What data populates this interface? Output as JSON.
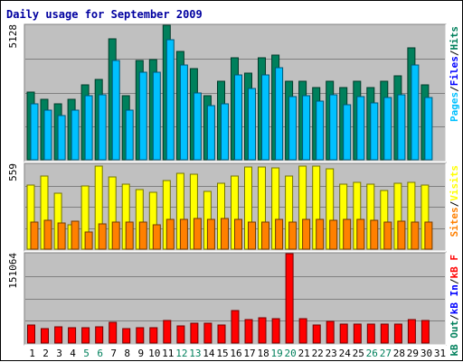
{
  "chart_data": {
    "type": "bar",
    "title": "Daily usage for September 2009",
    "categories": [
      "1",
      "2",
      "3",
      "4",
      "5",
      "6",
      "7",
      "8",
      "9",
      "10",
      "11",
      "12",
      "13",
      "14",
      "15",
      "16",
      "17",
      "18",
      "19",
      "20",
      "21",
      "22",
      "23",
      "24",
      "25",
      "26",
      "27",
      "28",
      "29",
      "30",
      "31"
    ],
    "weekend_days": [
      "5",
      "6",
      "12",
      "13",
      "19",
      "20",
      "26",
      "27"
    ],
    "panels": [
      {
        "name": "hits-files-pages",
        "ymax_label": "5128",
        "ymax": 5128,
        "right_labels": [
          {
            "text": "Hits",
            "color": "#00805c"
          },
          {
            "text": "/",
            "color": "#000000"
          },
          {
            "text": "Files",
            "color": "#0000ff"
          },
          {
            "text": "/",
            "color": "#000000"
          },
          {
            "text": "Pages",
            "color": "#00c0ff"
          }
        ],
        "series": [
          {
            "name": "Hits",
            "color": "#00805c",
            "values": [
              2570,
              2320,
              2140,
              2320,
              2870,
              3050,
              4600,
              2460,
              3780,
              3810,
              5128,
              4140,
              3470,
              2460,
              3000,
              3880,
              3290,
              3880,
              3980,
              3000,
              3000,
              2760,
              3010,
              2760,
              3000,
              2760,
              3000,
              3200,
              4260,
              2870,
              0
            ]
          },
          {
            "name": "Files",
            "color": "#00c0ff",
            "values": [
              2120,
              1880,
              1700,
              1880,
              2450,
              2480,
              3800,
              1880,
              3340,
              3340,
              4590,
              3620,
              2550,
              2050,
              2120,
              3250,
              2710,
              3250,
              3520,
              2410,
              2450,
              2240,
              2480,
              2090,
              2410,
              2180,
              2390,
              2480,
              3600,
              2370,
              0
            ]
          }
        ]
      },
      {
        "name": "visits-sites",
        "ymax_label": "559",
        "ymax": 559,
        "right_labels": [
          {
            "text": "Visits",
            "color": "#ffff00"
          },
          {
            "text": "/",
            "color": "#000000"
          },
          {
            "text": "Sites",
            "color": "#ff8000"
          }
        ],
        "series": [
          {
            "name": "Visits",
            "color": "#ffff00",
            "values": [
              420,
              480,
              366,
              163,
              419,
              549,
              474,
              427,
              394,
              372,
              450,
              500,
              494,
              378,
              437,
              484,
              540,
              543,
              535,
              479,
              549,
              549,
              530,
              427,
              439,
              427,
              388,
              437,
              440,
              420,
              0
            ]
          },
          {
            "name": "Sites",
            "color": "#ff8000",
            "values": [
              177,
              189,
              170,
              187,
              114,
              169,
              178,
              176,
              177,
              162,
              196,
              195,
              200,
              198,
              200,
              197,
              179,
              179,
              198,
              180,
              199,
              194,
              189,
              196,
              199,
              193,
              179,
              186,
              180,
              180,
              0
            ]
          }
        ]
      },
      {
        "name": "kbytes",
        "ymax_label": "151064",
        "ymax": 151064,
        "right_labels": [
          {
            "text": "kB F",
            "color": "#ff0000"
          },
          {
            "text": "/",
            "color": "#000000"
          },
          {
            "text": "kB In",
            "color": "#0000ff"
          },
          {
            "text": "/",
            "color": "#000000"
          },
          {
            "text": "kB Out",
            "color": "#00805c"
          }
        ],
        "series": [
          {
            "name": "kB F",
            "color": "#ff0000",
            "values": [
              29800,
              24600,
              26800,
              25500,
              26500,
              27100,
              35800,
              24600,
              26500,
              25500,
              38900,
              29200,
              33200,
              33300,
              30600,
              55100,
              40100,
              42700,
              41500,
              151064,
              40500,
              30500,
              37100,
              31400,
              31600,
              31500,
              31600,
              31600,
              39500,
              38200,
              0
            ]
          }
        ]
      }
    ],
    "grid": true,
    "background": "#c0c0c0"
  }
}
